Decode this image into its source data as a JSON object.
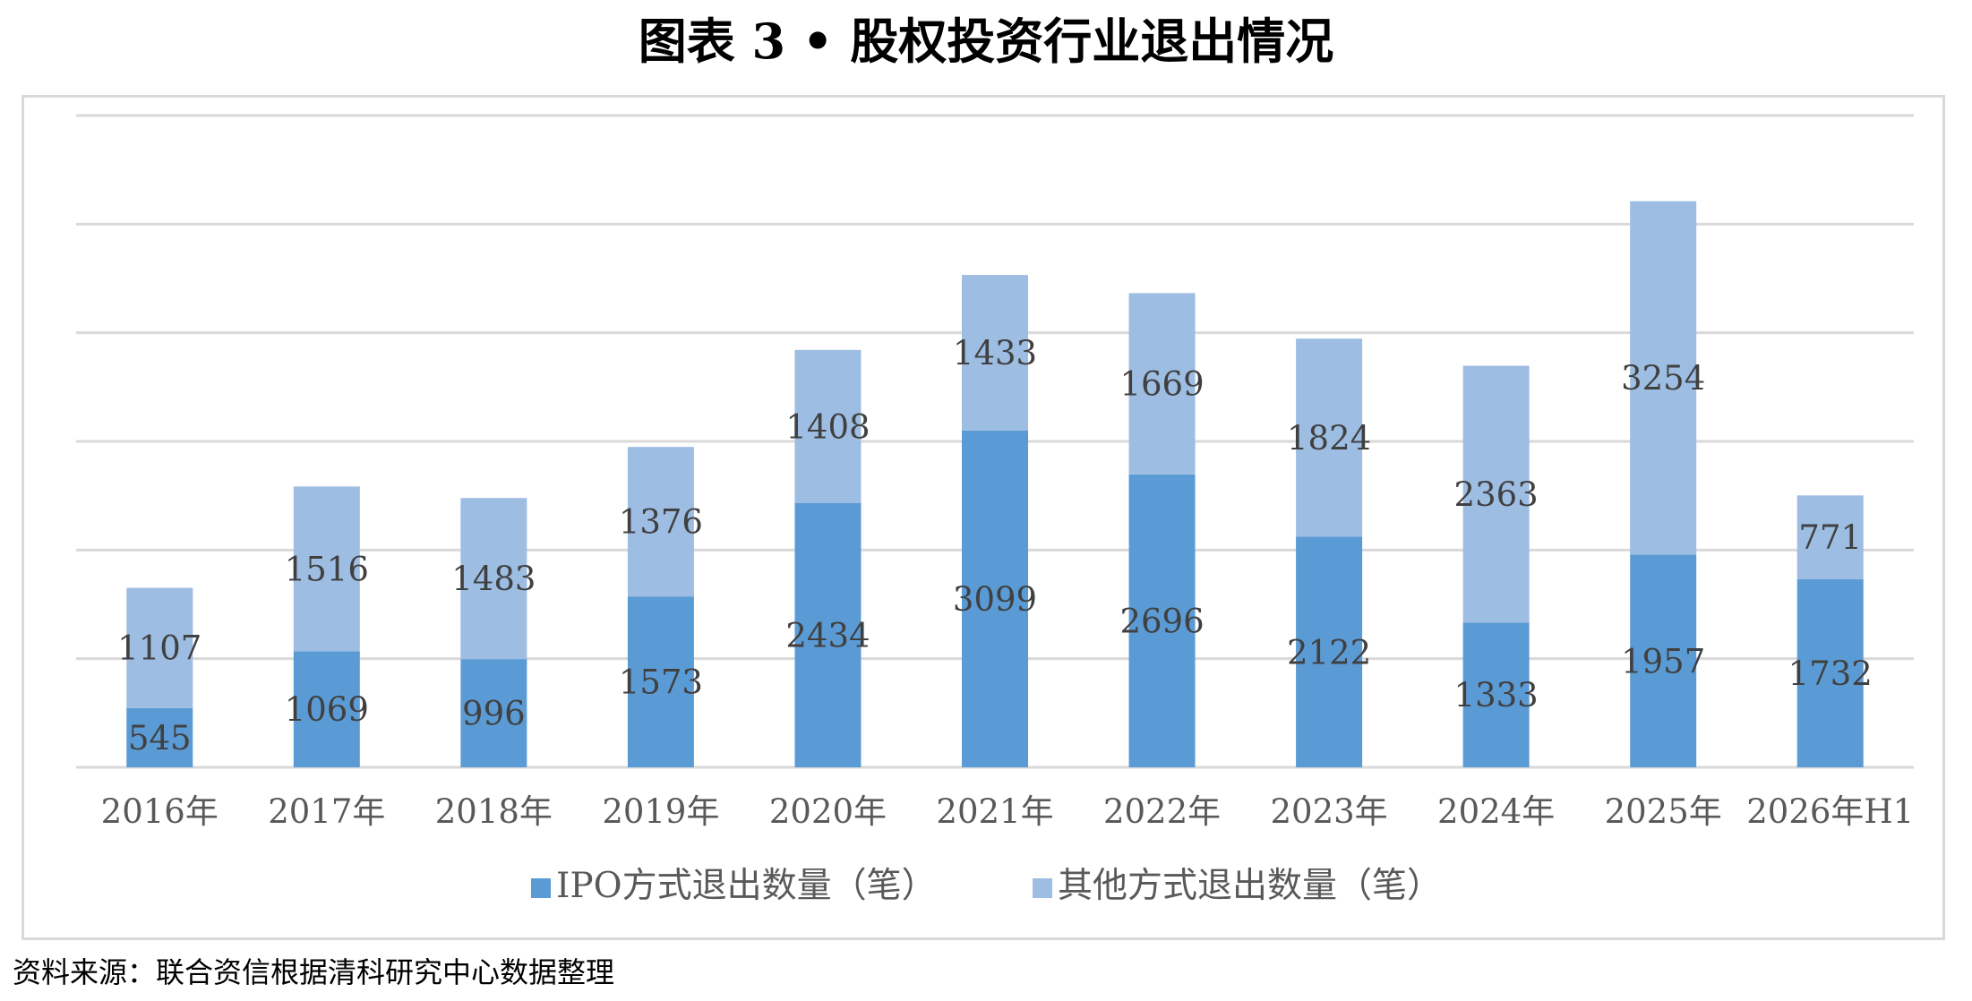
{
  "title": "图表 3 • 股权投资行业退出情况",
  "source": "资料来源：联合资信根据清科研究中心数据整理",
  "colors": {
    "ipo": "#5b9bd5",
    "other": "#9dbde3",
    "grid": "#d9d9d9",
    "label": "#404040",
    "tick": "#595959",
    "frame": "#d9d9d9"
  },
  "chart_data": {
    "type": "bar",
    "stacked": true,
    "categories": [
      "2016年",
      "2017年",
      "2018年",
      "2019年",
      "2020年",
      "2021年",
      "2022年",
      "2023年",
      "2024年",
      "2025年",
      "2026年H1"
    ],
    "series": [
      {
        "name": "IPO方式退出数量（笔）",
        "values": [
          545,
          1069,
          996,
          1573,
          2434,
          3099,
          2696,
          2122,
          1333,
          1957,
          1732
        ]
      },
      {
        "name": "其他方式退出数量（笔）",
        "values": [
          1107,
          1516,
          1483,
          1376,
          1408,
          1433,
          1669,
          1824,
          2363,
          3254,
          771
        ]
      }
    ],
    "ylim": [
      0,
      6000
    ],
    "y_gridlines": [
      0,
      1000,
      2000,
      3000,
      4000,
      5000,
      6000
    ],
    "y_tick_labels_shown": false,
    "grid": true,
    "legend_position": "bottom",
    "data_labels": true
  }
}
